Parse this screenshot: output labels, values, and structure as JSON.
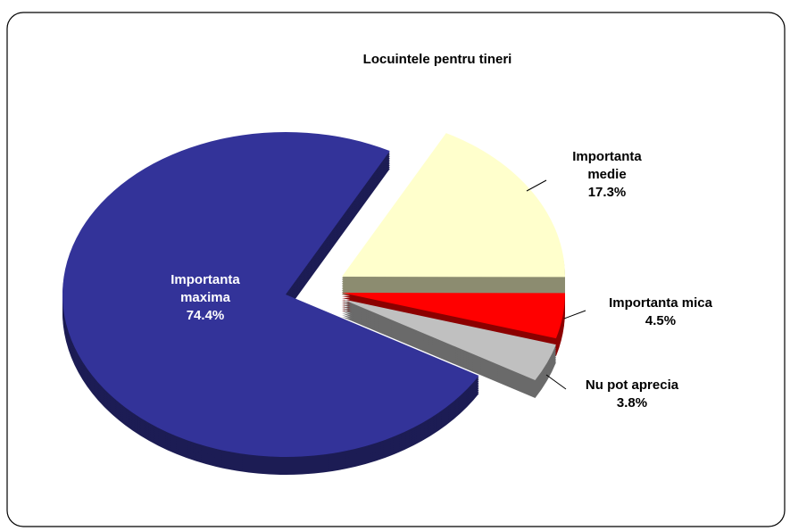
{
  "chart_data": {
    "type": "pie",
    "title": "Locuintele pentru tineri",
    "categories": [
      "Importanta maxima",
      "Importanta medie",
      "Importanta mica",
      "Nu pot aprecia"
    ],
    "values": [
      74.4,
      17.3,
      4.5,
      3.8
    ],
    "value_labels": [
      "74.4%",
      "17.3%",
      "4.5%",
      "3.8%"
    ],
    "colors": [
      "#333399",
      "#FFFFCC",
      "#FF0000",
      "#C0C0C0"
    ]
  }
}
